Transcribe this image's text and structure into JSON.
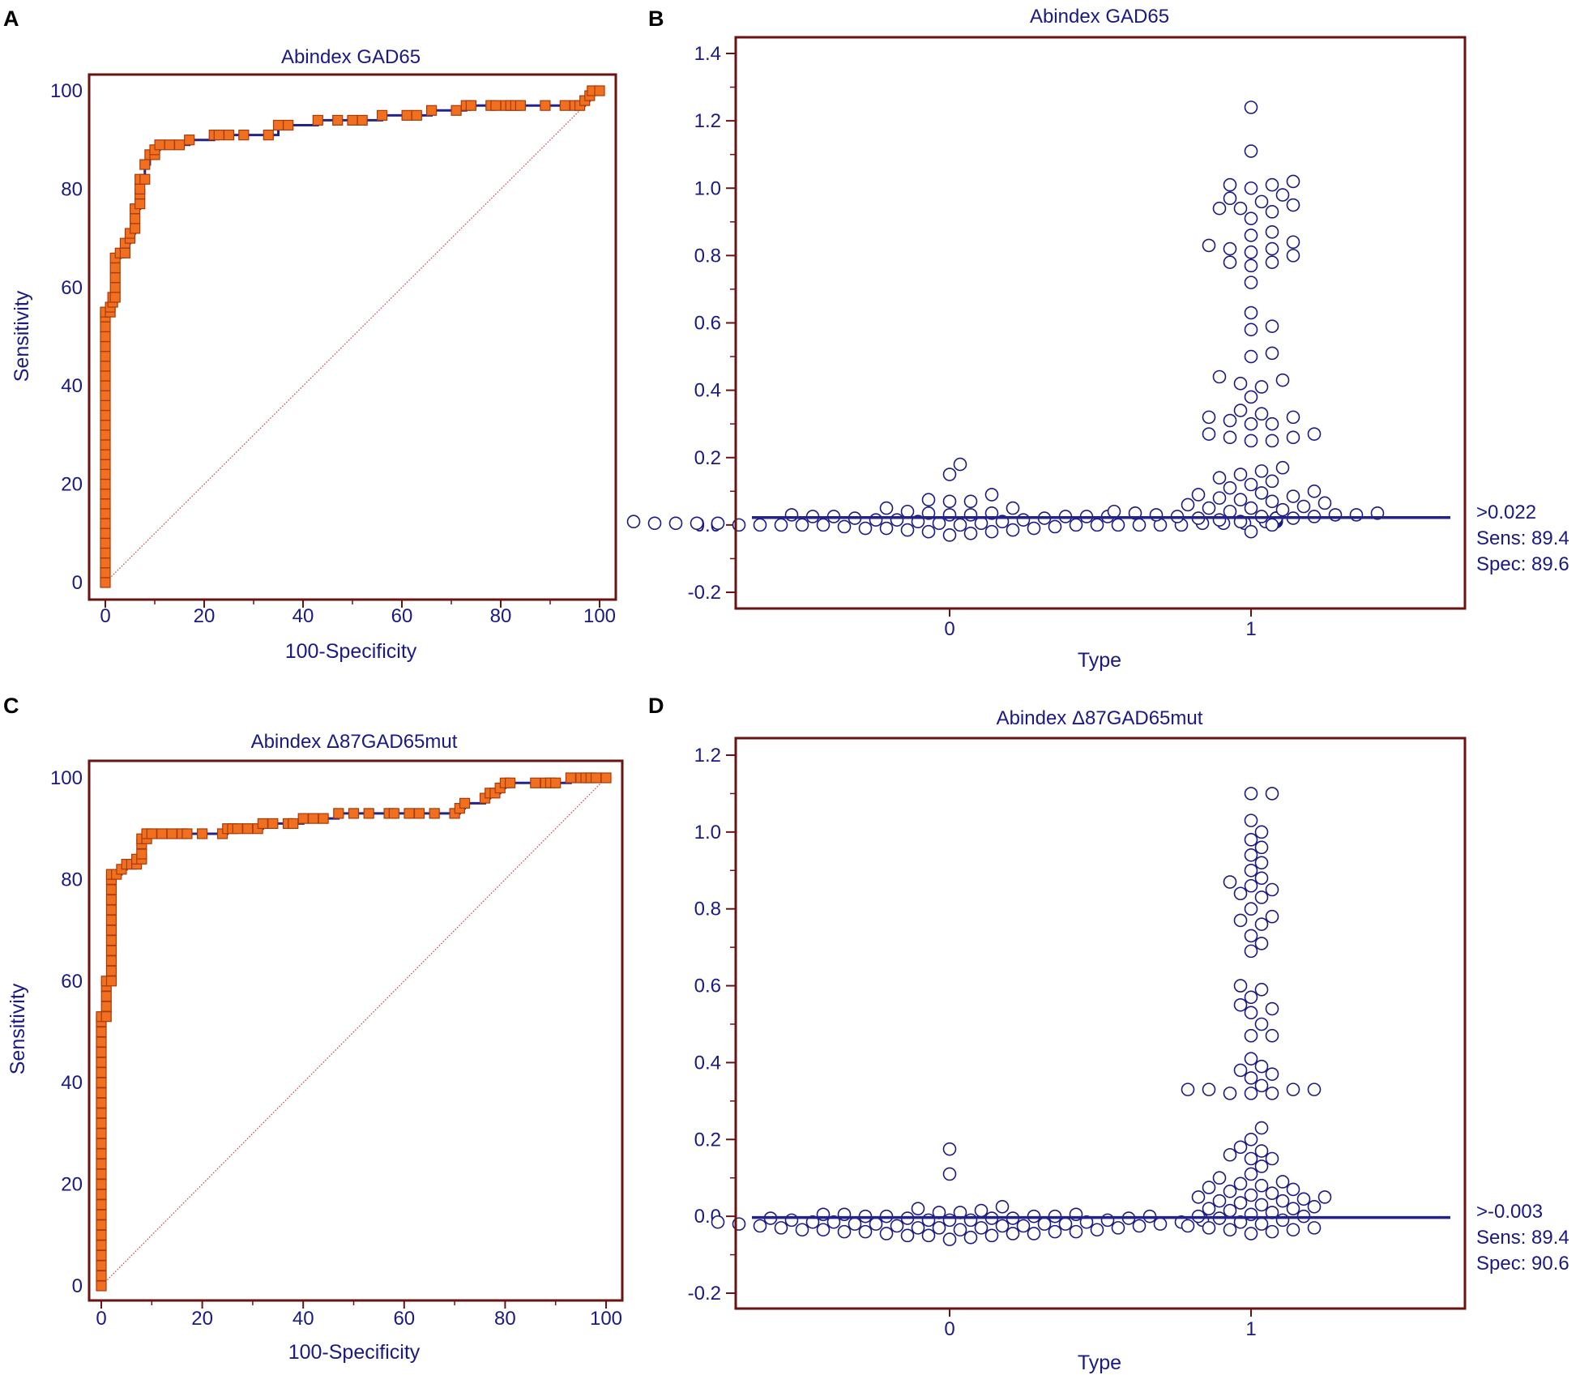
{
  "colors": {
    "frame": "#6b1212",
    "text": "#1a1a80",
    "curve": "#23238e",
    "marker_fill": "#f07020",
    "marker_edge": "#a83a08",
    "diagonal": "#c04040",
    "dot_edge": "#1a1a80"
  },
  "chart_data": [
    {
      "id": "A",
      "letter": "A",
      "type": "line",
      "title": "Abindex GAD65",
      "xlabel": "100-Specificity",
      "ylabel": "Sensitivity",
      "xlim": [
        0,
        100
      ],
      "ylim": [
        0,
        100
      ],
      "xticks": [
        "0",
        "20",
        "40",
        "60",
        "80",
        "100"
      ],
      "yticks": [
        "0",
        "20",
        "40",
        "60",
        "80",
        "100"
      ],
      "reference_line": [
        [
          0,
          0
        ],
        [
          100,
          100
        ]
      ],
      "roc": [
        [
          0,
          0
        ],
        [
          0,
          2
        ],
        [
          0,
          4
        ],
        [
          0,
          6
        ],
        [
          0,
          8
        ],
        [
          0,
          10
        ],
        [
          0,
          12
        ],
        [
          0,
          14
        ],
        [
          0,
          16
        ],
        [
          0,
          18
        ],
        [
          0,
          20
        ],
        [
          0,
          22
        ],
        [
          0,
          24
        ],
        [
          0,
          26
        ],
        [
          0,
          28
        ],
        [
          0,
          30
        ],
        [
          0,
          32
        ],
        [
          0,
          34
        ],
        [
          0,
          36
        ],
        [
          0,
          38
        ],
        [
          0,
          40
        ],
        [
          0,
          42
        ],
        [
          0,
          44
        ],
        [
          0,
          46
        ],
        [
          0,
          48
        ],
        [
          0,
          50
        ],
        [
          0,
          52
        ],
        [
          0,
          54
        ],
        [
          0,
          55
        ],
        [
          1,
          55
        ],
        [
          1,
          56
        ],
        [
          1.5,
          57
        ],
        [
          1.5,
          58
        ],
        [
          2,
          58
        ],
        [
          2,
          60
        ],
        [
          2,
          62
        ],
        [
          2,
          64
        ],
        [
          2,
          66
        ],
        [
          3,
          67
        ],
        [
          4,
          67
        ],
        [
          4,
          69
        ],
        [
          5,
          70
        ],
        [
          5,
          71
        ],
        [
          6,
          72
        ],
        [
          6,
          74
        ],
        [
          6,
          76
        ],
        [
          7,
          77
        ],
        [
          7,
          79
        ],
        [
          7,
          80
        ],
        [
          7,
          82
        ],
        [
          8,
          82
        ],
        [
          8,
          85
        ],
        [
          9,
          87
        ],
        [
          10,
          87
        ],
        [
          10,
          88
        ],
        [
          11,
          89
        ],
        [
          13,
          89
        ],
        [
          15,
          89
        ],
        [
          17,
          90
        ],
        [
          22,
          91
        ],
        [
          23,
          91
        ],
        [
          25,
          91
        ],
        [
          28,
          91
        ],
        [
          33,
          91
        ],
        [
          35,
          93
        ],
        [
          37,
          93
        ],
        [
          43,
          94
        ],
        [
          47,
          94
        ],
        [
          50,
          94
        ],
        [
          52,
          94
        ],
        [
          56,
          95
        ],
        [
          61,
          95
        ],
        [
          63,
          95
        ],
        [
          66,
          96
        ],
        [
          71,
          96
        ],
        [
          73,
          97
        ],
        [
          74,
          97
        ],
        [
          78,
          97
        ],
        [
          79,
          97
        ],
        [
          81,
          97
        ],
        [
          82,
          97
        ],
        [
          83,
          97
        ],
        [
          84,
          97
        ],
        [
          89,
          97
        ],
        [
          93,
          97
        ],
        [
          95,
          97
        ],
        [
          96,
          97
        ],
        [
          97,
          98
        ],
        [
          98,
          99
        ],
        [
          98.5,
          100
        ],
        [
          100,
          100
        ]
      ]
    },
    {
      "id": "B",
      "letter": "B",
      "type": "scatter",
      "title": "Abindex GAD65",
      "xlabel": "Type",
      "ylabel": "",
      "categories": [
        "0",
        "1"
      ],
      "ylim": [
        -0.2,
        1.4
      ],
      "yticks": [
        "-0.2",
        "0.0",
        "0.2",
        "0.4",
        "0.6",
        "0.8",
        "1.0",
        "1.2",
        "1.4"
      ],
      "cutoff": 0.022,
      "annotations": [
        ">0.022",
        "Sens: 89.4",
        "Spec: 89.6"
      ],
      "groups": [
        {
          "name": "0",
          "values": [
            -0.03,
            -0.025,
            -0.02,
            -0.02,
            -0.015,
            -0.015,
            -0.01,
            -0.01,
            -0.01,
            -0.005,
            -0.005,
            0.0,
            0.0,
            0.0,
            0.0,
            0.0,
            0.0,
            0.0,
            0.0,
            0.0,
            0.0,
            0.0,
            0.0,
            0.005,
            0.005,
            0.005,
            0.005,
            0.005,
            0.005,
            0.005,
            0.005,
            0.005,
            0.01,
            0.01,
            0.01,
            0.01,
            0.01,
            0.01,
            0.01,
            0.01,
            0.01,
            0.01,
            0.015,
            0.015,
            0.015,
            0.015,
            0.015,
            0.015,
            0.015,
            0.015,
            0.02,
            0.02,
            0.02,
            0.02,
            0.02,
            0.02,
            0.02,
            0.025,
            0.025,
            0.025,
            0.025,
            0.025,
            0.03,
            0.03,
            0.03,
            0.035,
            0.035,
            0.04,
            0.05,
            0.05,
            0.07,
            0.07,
            0.075,
            0.09,
            0.15,
            0.18
          ]
        },
        {
          "name": "1",
          "values": [
            -0.02,
            0.0,
            0.01,
            0.015,
            0.02,
            0.02,
            0.025,
            0.025,
            0.025,
            0.03,
            0.03,
            0.03,
            0.035,
            0.035,
            0.04,
            0.04,
            0.045,
            0.05,
            0.05,
            0.055,
            0.06,
            0.065,
            0.07,
            0.075,
            0.08,
            0.085,
            0.09,
            0.095,
            0.1,
            0.11,
            0.12,
            0.13,
            0.14,
            0.15,
            0.16,
            0.17,
            0.25,
            0.25,
            0.26,
            0.26,
            0.27,
            0.27,
            0.3,
            0.3,
            0.31,
            0.32,
            0.32,
            0.33,
            0.34,
            0.38,
            0.41,
            0.42,
            0.43,
            0.44,
            0.5,
            0.51,
            0.58,
            0.59,
            0.63,
            0.72,
            0.77,
            0.78,
            0.78,
            0.8,
            0.81,
            0.82,
            0.82,
            0.83,
            0.84,
            0.86,
            0.87,
            0.91,
            0.93,
            0.94,
            0.94,
            0.95,
            0.96,
            0.97,
            0.98,
            1.0,
            1.01,
            1.01,
            1.02,
            1.11,
            1.24
          ]
        }
      ]
    },
    {
      "id": "C",
      "letter": "C",
      "type": "line",
      "title": "Abindex Δ87GAD65mut",
      "xlabel": "100-Specificity",
      "ylabel": "Sensitivity",
      "xlim": [
        0,
        100
      ],
      "ylim": [
        0,
        100
      ],
      "xticks": [
        "0",
        "20",
        "40",
        "60",
        "80",
        "100"
      ],
      "yticks": [
        "0",
        "20",
        "40",
        "60",
        "80",
        "100"
      ],
      "reference_line": [
        [
          0,
          0
        ],
        [
          100,
          100
        ]
      ],
      "roc": [
        [
          0,
          0
        ],
        [
          0,
          2
        ],
        [
          0,
          4
        ],
        [
          0,
          6
        ],
        [
          0,
          8
        ],
        [
          0,
          10
        ],
        [
          0,
          12
        ],
        [
          0,
          14
        ],
        [
          0,
          16
        ],
        [
          0,
          18
        ],
        [
          0,
          20
        ],
        [
          0,
          22
        ],
        [
          0,
          24
        ],
        [
          0,
          26
        ],
        [
          0,
          28
        ],
        [
          0,
          30
        ],
        [
          0,
          32
        ],
        [
          0,
          34
        ],
        [
          0,
          36
        ],
        [
          0,
          38
        ],
        [
          0,
          40
        ],
        [
          0,
          42
        ],
        [
          0,
          44
        ],
        [
          0,
          46
        ],
        [
          0,
          48
        ],
        [
          0,
          50
        ],
        [
          0,
          52
        ],
        [
          0,
          53
        ],
        [
          1,
          53
        ],
        [
          1,
          55
        ],
        [
          1,
          57
        ],
        [
          1,
          59
        ],
        [
          1,
          60
        ],
        [
          2,
          60
        ],
        [
          2,
          62
        ],
        [
          2,
          64
        ],
        [
          2,
          66
        ],
        [
          2,
          68
        ],
        [
          2,
          70
        ],
        [
          2,
          72
        ],
        [
          2,
          74
        ],
        [
          2,
          76
        ],
        [
          2,
          78
        ],
        [
          2,
          80
        ],
        [
          2,
          81
        ],
        [
          3,
          81
        ],
        [
          4,
          82
        ],
        [
          5,
          83
        ],
        [
          6,
          83
        ],
        [
          7,
          83
        ],
        [
          7,
          84
        ],
        [
          8,
          84
        ],
        [
          8,
          85
        ],
        [
          8,
          87
        ],
        [
          8,
          88
        ],
        [
          9,
          88
        ],
        [
          9,
          89
        ],
        [
          10,
          89
        ],
        [
          12,
          89
        ],
        [
          14,
          89
        ],
        [
          16,
          89
        ],
        [
          17,
          89
        ],
        [
          20,
          89
        ],
        [
          24,
          89
        ],
        [
          25,
          90
        ],
        [
          26,
          90
        ],
        [
          27,
          90
        ],
        [
          29,
          90
        ],
        [
          31,
          90
        ],
        [
          32,
          91
        ],
        [
          34,
          91
        ],
        [
          37,
          91
        ],
        [
          38,
          91
        ],
        [
          40,
          92
        ],
        [
          42,
          92
        ],
        [
          44,
          92
        ],
        [
          47,
          93
        ],
        [
          50,
          93
        ],
        [
          53,
          93
        ],
        [
          57,
          93
        ],
        [
          58,
          93
        ],
        [
          61,
          93
        ],
        [
          63,
          93
        ],
        [
          66,
          93
        ],
        [
          70,
          93
        ],
        [
          71,
          94
        ],
        [
          72,
          95
        ],
        [
          76,
          96
        ],
        [
          77,
          97
        ],
        [
          78,
          97
        ],
        [
          79,
          98
        ],
        [
          80,
          99
        ],
        [
          81,
          99
        ],
        [
          86,
          99
        ],
        [
          88,
          99
        ],
        [
          89,
          99
        ],
        [
          90,
          99
        ],
        [
          93,
          100
        ],
        [
          95,
          100
        ],
        [
          96,
          100
        ],
        [
          97,
          100
        ],
        [
          98,
          100
        ],
        [
          100,
          100
        ]
      ]
    },
    {
      "id": "D",
      "letter": "D",
      "type": "scatter",
      "title": "Abindex Δ87GAD65mut",
      "xlabel": "Type",
      "ylabel": "",
      "categories": [
        "0",
        "1"
      ],
      "ylim": [
        -0.2,
        1.2
      ],
      "yticks": [
        "-0.2",
        "0.0",
        "0.2",
        "0.4",
        "0.6",
        "0.8",
        "1.0",
        "1.2"
      ],
      "cutoff": -0.003,
      "annotations": [
        ">-0.003",
        "Sens: 89.4",
        "Spec: 90.6"
      ],
      "groups": [
        {
          "name": "0",
          "values": [
            -0.06,
            -0.055,
            -0.05,
            -0.05,
            -0.05,
            -0.045,
            -0.045,
            -0.045,
            -0.04,
            -0.04,
            -0.04,
            -0.04,
            -0.035,
            -0.035,
            -0.035,
            -0.035,
            -0.03,
            -0.03,
            -0.03,
            -0.03,
            -0.03,
            -0.025,
            -0.025,
            -0.025,
            -0.025,
            -0.025,
            -0.02,
            -0.02,
            -0.02,
            -0.02,
            -0.02,
            -0.02,
            -0.015,
            -0.015,
            -0.015,
            -0.015,
            -0.015,
            -0.01,
            -0.01,
            -0.01,
            -0.01,
            -0.01,
            -0.01,
            -0.005,
            -0.005,
            -0.005,
            -0.005,
            -0.005,
            0.0,
            0.0,
            0.0,
            0.0,
            0.0,
            0.005,
            0.005,
            0.005,
            0.01,
            0.01,
            0.015,
            0.02,
            0.025,
            0.11,
            0.175
          ]
        },
        {
          "name": "1",
          "values": [
            -0.045,
            -0.04,
            -0.035,
            -0.035,
            -0.03,
            -0.03,
            -0.025,
            -0.02,
            -0.015,
            -0.01,
            -0.005,
            0.0,
            0.0,
            0.005,
            0.01,
            0.015,
            0.02,
            0.02,
            0.025,
            0.03,
            0.035,
            0.04,
            0.04,
            0.045,
            0.05,
            0.05,
            0.055,
            0.06,
            0.065,
            0.07,
            0.075,
            0.08,
            0.085,
            0.09,
            0.1,
            0.11,
            0.13,
            0.15,
            0.15,
            0.16,
            0.17,
            0.18,
            0.2,
            0.23,
            0.32,
            0.32,
            0.32,
            0.33,
            0.33,
            0.33,
            0.33,
            0.34,
            0.36,
            0.37,
            0.38,
            0.39,
            0.41,
            0.47,
            0.47,
            0.5,
            0.53,
            0.54,
            0.55,
            0.57,
            0.59,
            0.6,
            0.69,
            0.71,
            0.73,
            0.76,
            0.77,
            0.78,
            0.8,
            0.83,
            0.84,
            0.85,
            0.86,
            0.87,
            0.88,
            0.9,
            0.92,
            0.94,
            0.96,
            0.98,
            1.0,
            1.03,
            1.1,
            1.1
          ]
        }
      ]
    }
  ]
}
